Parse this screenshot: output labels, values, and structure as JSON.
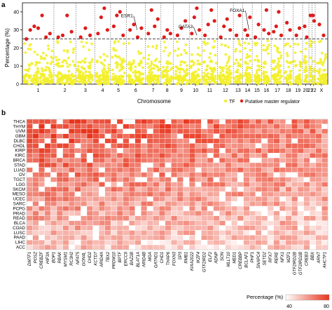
{
  "panel_a": {
    "label": "a",
    "ylabel": "Percentage (%)",
    "xlabel": "Chromosome",
    "legend": {
      "tf": "TF",
      "master": "Putative master regulator"
    },
    "annotations": [
      {
        "text": "ESR1",
        "chrom": "6"
      },
      {
        "text": "GATA3",
        "chrom": "10"
      },
      {
        "text": "FOXA1",
        "chrom": "14"
      }
    ]
  },
  "panel_b": {
    "label": "b",
    "legend": {
      "title": "Percentage (%)",
      "min": "40",
      "max": "80"
    }
  },
  "colors": {
    "tf": "#f3ef2a",
    "master": "#dd1c1c",
    "threshold": "#333333",
    "grid": "#555555",
    "heat_low": "#ffffff",
    "heat_high": "#e8341c",
    "red_label": "#e21b1b"
  },
  "chart_data": [
    {
      "type": "scatter",
      "xlabel": "Chromosome",
      "ylabel": "Percentage (%)",
      "ylim": [
        0,
        45
      ],
      "yticks": [
        0,
        10,
        20,
        30,
        40
      ],
      "threshold": 25,
      "categories": [
        "1",
        "2",
        "3",
        "4",
        "5",
        "6",
        "7",
        "8",
        "9",
        "10",
        "11",
        "12",
        "13",
        "14",
        "15",
        "16",
        "17",
        "18",
        "19",
        "20",
        "21",
        "22",
        "X"
      ],
      "weights": [
        10,
        7,
        6,
        5,
        5,
        6,
        5,
        4,
        5,
        4,
        5,
        5,
        3,
        3,
        3,
        3,
        4,
        3,
        3,
        2,
        1,
        1,
        4
      ],
      "master_points": [
        {
          "c": "1",
          "y": 25
        },
        {
          "c": "1",
          "y": 30
        },
        {
          "c": "1",
          "y": 32
        },
        {
          "c": "1",
          "y": 31
        },
        {
          "c": "1",
          "y": 38
        },
        {
          "c": "1",
          "y": 26
        },
        {
          "c": "1",
          "y": 28
        },
        {
          "c": "2",
          "y": 26
        },
        {
          "c": "2",
          "y": 27
        },
        {
          "c": "2",
          "y": 38
        },
        {
          "c": "2",
          "y": 29
        },
        {
          "c": "3",
          "y": 26
        },
        {
          "c": "3",
          "y": 31
        },
        {
          "c": "3",
          "y": 27
        },
        {
          "c": "4",
          "y": 28
        },
        {
          "c": "4",
          "y": 37
        },
        {
          "c": "4",
          "y": 42
        },
        {
          "c": "4",
          "y": 30
        },
        {
          "c": "5",
          "y": 32
        },
        {
          "c": "5",
          "y": 38
        },
        {
          "c": "5",
          "y": 40
        },
        {
          "c": "5",
          "y": 27
        },
        {
          "c": "6",
          "y": 30
        },
        {
          "c": "6",
          "y": 33
        },
        {
          "c": "6",
          "y": 26
        },
        {
          "c": "6",
          "y": 31
        },
        {
          "c": "7",
          "y": 28
        },
        {
          "c": "7",
          "y": 41
        },
        {
          "c": "7",
          "y": 32
        },
        {
          "c": "7",
          "y": 36
        },
        {
          "c": "8",
          "y": 26
        },
        {
          "c": "8",
          "y": 30
        },
        {
          "c": "8",
          "y": 28
        },
        {
          "c": "9",
          "y": 27
        },
        {
          "c": "9",
          "y": 31
        },
        {
          "c": "9",
          "y": 35
        },
        {
          "c": "10",
          "y": 28
        },
        {
          "c": "10",
          "y": 37
        },
        {
          "c": "10",
          "y": 42
        },
        {
          "c": "10",
          "y": 30
        },
        {
          "c": "11",
          "y": 27
        },
        {
          "c": "11",
          "y": 33
        },
        {
          "c": "11",
          "y": 41
        },
        {
          "c": "11",
          "y": 35
        },
        {
          "c": "12",
          "y": 26
        },
        {
          "c": "12",
          "y": 32
        },
        {
          "c": "12",
          "y": 36
        },
        {
          "c": "12",
          "y": 30
        },
        {
          "c": "13",
          "y": 27
        },
        {
          "c": "13",
          "y": 38
        },
        {
          "c": "14",
          "y": 30
        },
        {
          "c": "14",
          "y": 27
        },
        {
          "c": "14",
          "y": 37
        },
        {
          "c": "15",
          "y": 26
        },
        {
          "c": "15",
          "y": 33
        },
        {
          "c": "16",
          "y": 30
        },
        {
          "c": "16",
          "y": 41
        },
        {
          "c": "16",
          "y": 28
        },
        {
          "c": "17",
          "y": 29
        },
        {
          "c": "17",
          "y": 32
        },
        {
          "c": "17",
          "y": 40
        },
        {
          "c": "17",
          "y": 27
        },
        {
          "c": "18",
          "y": 34
        },
        {
          "c": "18",
          "y": 30
        },
        {
          "c": "19",
          "y": 27
        },
        {
          "c": "19",
          "y": 31
        },
        {
          "c": "20",
          "y": 32
        },
        {
          "c": "20",
          "y": 26
        },
        {
          "c": "21",
          "y": 38
        },
        {
          "c": "22",
          "y": 38
        },
        {
          "c": "22",
          "y": 35
        },
        {
          "c": "X",
          "y": 33
        },
        {
          "c": "X",
          "y": 27
        }
      ]
    },
    {
      "type": "heatmap",
      "rows": [
        "THCA",
        "THYM",
        "UVM",
        "GBM",
        "DLBC",
        "CHOL",
        "KIRP",
        "KIRC",
        "BRCA",
        "STAD",
        "LUAD",
        "OV",
        "TGCT",
        "LGG",
        "SKCM",
        "MESO",
        "UCEC",
        "SARC",
        "PCPG",
        "PRAD",
        "READ",
        "BLCA",
        "COAD",
        "LUSC",
        "PAAD",
        "LIHC",
        "ACC"
      ],
      "columns": [
        {
          "name": "DMTF1",
          "red": false
        },
        {
          "name": "POSZ",
          "red": false
        },
        {
          "name": "CREBZF",
          "red": false
        },
        {
          "name": "HIF3A",
          "red": true
        },
        {
          "name": "BOP1",
          "red": false
        },
        {
          "name": "RBAK",
          "red": false
        },
        {
          "name": "MYSM1",
          "red": false
        },
        {
          "name": "RC3H2",
          "red": false
        },
        {
          "name": "NFAT5",
          "red": true
        },
        {
          "name": "GON4L",
          "red": false
        },
        {
          "name": "CHD2",
          "red": true
        },
        {
          "name": "KCTD7",
          "red": false
        },
        {
          "name": "ARID4A",
          "red": true
        },
        {
          "name": "TBX2",
          "red": true
        },
        {
          "name": "PRDM10",
          "red": false
        },
        {
          "name": "BPTF",
          "red": false
        },
        {
          "name": "ERCC6",
          "red": false
        },
        {
          "name": "BAZ2B",
          "red": false
        },
        {
          "name": "BLAT1A",
          "red": true
        },
        {
          "name": "ARID4B",
          "red": false
        },
        {
          "name": "MGA",
          "red": true
        },
        {
          "name": "GATAD1",
          "red": false
        },
        {
          "name": "CHD1",
          "red": false
        },
        {
          "name": "THAP6",
          "red": false
        },
        {
          "name": "FOXN3",
          "red": false
        },
        {
          "name": "SP3",
          "red": true
        },
        {
          "name": "RMB1",
          "red": true
        },
        {
          "name": "KIAA2022",
          "red": false
        },
        {
          "name": "IKZF4",
          "red": false
        },
        {
          "name": "GTF2IRD2",
          "red": false
        },
        {
          "name": "ELF2",
          "red": false
        },
        {
          "name": "ADNP",
          "red": true
        },
        {
          "name": "SON",
          "red": false
        },
        {
          "name": "MLLT10",
          "red": true
        },
        {
          "name": "MED1",
          "red": false
        },
        {
          "name": "CREBBP",
          "red": true
        },
        {
          "name": "BCLAF1",
          "red": true
        },
        {
          "name": "PHF1",
          "red": false
        },
        {
          "name": "SNAPC4",
          "red": false
        },
        {
          "name": "SETD2",
          "red": true
        },
        {
          "name": "RFX7",
          "red": false
        },
        {
          "name": "RERE",
          "red": false
        },
        {
          "name": "NFX1",
          "red": false
        },
        {
          "name": "MZF1",
          "red": false
        },
        {
          "name": "GTF2IRD2B",
          "red": false
        },
        {
          "name": "GTF2IRD2B",
          "red": false
        },
        {
          "name": "CREB3",
          "red": true
        },
        {
          "name": "BBX",
          "red": false
        },
        {
          "name": "ARNT",
          "red": true
        },
        {
          "name": "AHCTF1",
          "red": false
        }
      ]
    }
  ]
}
